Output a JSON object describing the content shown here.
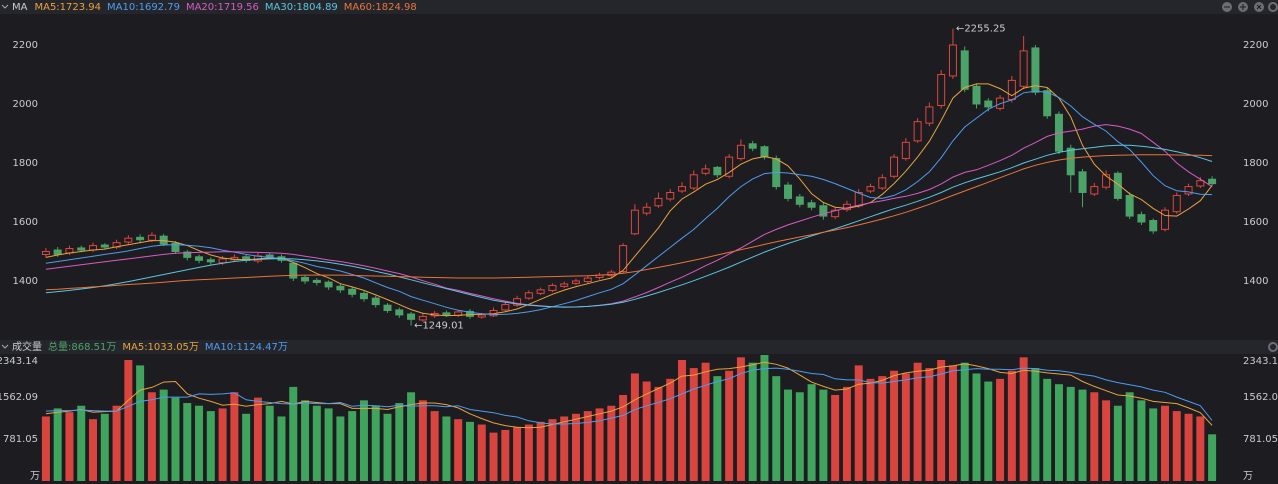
{
  "chart_data": {
    "type": "candlestick",
    "header": "MA",
    "open": [
      1490,
      1505,
      1495,
      1512,
      1505,
      1522,
      1515,
      1532,
      1548,
      1538,
      1552,
      1528,
      1498,
      1482,
      1472,
      1462,
      1472,
      1482,
      1468,
      1488,
      1482,
      1460,
      1412,
      1402,
      1396,
      1382,
      1372,
      1358,
      1342,
      1318,
      1302,
      1288,
      1268,
      1282,
      1292,
      1283,
      1297,
      1278,
      1282,
      1302,
      1318,
      1342,
      1358,
      1368,
      1382,
      1392,
      1398,
      1412,
      1418,
      1432,
      1560,
      1630,
      1655,
      1678,
      1705,
      1715,
      1765,
      1785,
      1755,
      1815,
      1865,
      1855,
      1815,
      1725,
      1685,
      1665,
      1655,
      1618,
      1642,
      1655,
      1705,
      1715,
      1755,
      1815,
      1875,
      1935,
      1995,
      2095,
      2180,
      2060,
      2010,
      1985,
      2015,
      2060,
      2190,
      2045,
      1965,
      1850,
      1770,
      1695,
      1718,
      1765,
      1690,
      1625,
      1605,
      1575,
      1635,
      1695,
      1722,
      1745
    ],
    "high": [
      1512,
      1515,
      1520,
      1520,
      1530,
      1528,
      1540,
      1555,
      1558,
      1565,
      1560,
      1535,
      1505,
      1490,
      1480,
      1485,
      1490,
      1488,
      1495,
      1495,
      1490,
      1465,
      1420,
      1410,
      1402,
      1390,
      1380,
      1365,
      1350,
      1325,
      1310,
      1295,
      1290,
      1298,
      1300,
      1302,
      1305,
      1292,
      1310,
      1330,
      1350,
      1368,
      1378,
      1392,
      1398,
      1408,
      1418,
      1428,
      1438,
      1528,
      1660,
      1665,
      1700,
      1712,
      1735,
      1775,
      1795,
      1790,
      1830,
      1880,
      1875,
      1860,
      1825,
      1735,
      1695,
      1675,
      1665,
      1650,
      1672,
      1712,
      1730,
      1762,
      1830,
      1885,
      1952,
      2005,
      2115,
      2255.25,
      2195,
      2070,
      2020,
      2030,
      2095,
      2230,
      2200,
      2055,
      1975,
      1862,
      1780,
      1732,
      1775,
      1772,
      1700,
      1635,
      1612,
      1650,
      1700,
      1730,
      1752,
      1755
    ],
    "low": [
      1480,
      1482,
      1488,
      1498,
      1498,
      1508,
      1508,
      1525,
      1530,
      1532,
      1518,
      1492,
      1470,
      1460,
      1455,
      1455,
      1465,
      1462,
      1460,
      1475,
      1462,
      1400,
      1390,
      1385,
      1370,
      1360,
      1345,
      1330,
      1310,
      1292,
      1275,
      1249.01,
      1262,
      1275,
      1278,
      1278,
      1272,
      1272,
      1278,
      1298,
      1312,
      1336,
      1352,
      1362,
      1376,
      1386,
      1392,
      1405,
      1412,
      1425,
      1555,
      1622,
      1648,
      1670,
      1698,
      1708,
      1758,
      1750,
      1748,
      1808,
      1840,
      1812,
      1710,
      1670,
      1650,
      1640,
      1608,
      1610,
      1635,
      1648,
      1698,
      1708,
      1748,
      1808,
      1868,
      1925,
      1985,
      2085,
      2040,
      1985,
      1975,
      1978,
      2005,
      2050,
      2030,
      1950,
      1830,
      1700,
      1650,
      1688,
      1710,
      1672,
      1610,
      1590,
      1560,
      1568,
      1628,
      1688,
      1715,
      1722
    ],
    "close": [
      1500,
      1490,
      1510,
      1505,
      1520,
      1515,
      1530,
      1545,
      1540,
      1555,
      1525,
      1500,
      1480,
      1470,
      1465,
      1475,
      1480,
      1470,
      1485,
      1480,
      1470,
      1410,
      1400,
      1395,
      1380,
      1370,
      1355,
      1340,
      1320,
      1300,
      1285,
      1270,
      1280,
      1290,
      1285,
      1295,
      1280,
      1285,
      1300,
      1320,
      1340,
      1360,
      1370,
      1385,
      1390,
      1400,
      1410,
      1420,
      1430,
      1520,
      1640,
      1650,
      1680,
      1700,
      1720,
      1760,
      1780,
      1760,
      1820,
      1860,
      1850,
      1820,
      1720,
      1680,
      1660,
      1650,
      1620,
      1640,
      1660,
      1700,
      1720,
      1750,
      1820,
      1870,
      1940,
      1990,
      2100,
      2200,
      2050,
      2000,
      1990,
      2020,
      2080,
      2180,
      2040,
      1960,
      1840,
      1760,
      1700,
      1720,
      1760,
      1680,
      1620,
      1600,
      1570,
      1640,
      1690,
      1720,
      1740,
      1730
    ],
    "series": [
      {
        "name": "MA5:1723.94",
        "color": "#e8a33c",
        "values": [
          1480,
          1488,
          1495,
          1500,
          1505,
          1508,
          1516,
          1523,
          1530,
          1537,
          1537,
          1532,
          1520,
          1503,
          1488,
          1478,
          1474,
          1472,
          1475,
          1478,
          1477,
          1463,
          1445,
          1425,
          1411,
          1391,
          1380,
          1368,
          1353,
          1337,
          1320,
          1303,
          1291,
          1285,
          1282,
          1284,
          1286,
          1287,
          1289,
          1296,
          1305,
          1321,
          1338,
          1355,
          1369,
          1381,
          1391,
          1401,
          1410,
          1436,
          1484,
          1532,
          1580,
          1638,
          1678,
          1702,
          1728,
          1744,
          1768,
          1796,
          1814,
          1822,
          1814,
          1790,
          1746,
          1696,
          1666,
          1650,
          1646,
          1654,
          1666,
          1694,
          1730,
          1772,
          1820,
          1874,
          1944,
          2020,
          2056,
          2068,
          2068,
          2052,
          2028,
          2054,
          2062,
          2056,
          2020,
          1956,
          1860,
          1796,
          1756,
          1728,
          1696,
          1676,
          1646,
          1622,
          1620,
          1644,
          1672,
          1723.94
        ]
      },
      {
        "name": "MA10:1692.79",
        "color": "#4e9cf0",
        "values": [
          1460,
          1466,
          1472,
          1478,
          1484,
          1490,
          1496,
          1502,
          1510,
          1518,
          1522,
          1523,
          1521,
          1518,
          1513,
          1504,
          1498,
          1490,
          1484,
          1480,
          1476,
          1469,
          1460,
          1449,
          1442,
          1434,
          1422,
          1410,
          1394,
          1378,
          1365,
          1347,
          1335,
          1323,
          1311,
          1301,
          1294,
          1289,
          1286,
          1287,
          1290,
          1296,
          1303,
          1313,
          1323,
          1334,
          1347,
          1360,
          1372,
          1391,
          1421,
          1452,
          1483,
          1514,
          1545,
          1575,
          1612,
          1646,
          1686,
          1720,
          1746,
          1764,
          1768,
          1766,
          1760,
          1755,
          1744,
          1730,
          1714,
          1698,
          1683,
          1680,
          1690,
          1709,
          1737,
          1770,
          1818,
          1875,
          1922,
          1952,
          1982,
          2001,
          2014,
          2038,
          2043,
          2040,
          2022,
          1993,
          1957,
          1931,
          1908,
          1872,
          1846,
          1803,
          1757,
          1723,
          1706,
          1702,
          1694,
          1692.79
        ]
      },
      {
        "name": "MA20:1719.56",
        "color": "#d85bc4",
        "values": [
          1440,
          1445,
          1450,
          1455,
          1460,
          1465,
          1470,
          1475,
          1480,
          1485,
          1490,
          1494,
          1496,
          1497,
          1498,
          1499,
          1499,
          1498,
          1497,
          1496,
          1494,
          1490,
          1484,
          1478,
          1471,
          1466,
          1459,
          1452,
          1443,
          1434,
          1425,
          1414,
          1401,
          1389,
          1376,
          1368,
          1358,
          1349,
          1340,
          1332,
          1324,
          1319,
          1316,
          1313,
          1311,
          1312,
          1314,
          1318,
          1323,
          1332,
          1346,
          1361,
          1378,
          1396,
          1413,
          1432,
          1452,
          1470,
          1491,
          1512,
          1535,
          1558,
          1575,
          1590,
          1603,
          1616,
          1628,
          1638,
          1648,
          1657,
          1665,
          1672,
          1680,
          1687,
          1697,
          1710,
          1729,
          1752,
          1768,
          1777,
          1792,
          1808,
          1826,
          1850,
          1869,
          1890,
          1902,
          1908,
          1915,
          1925,
          1930,
          1925,
          1915,
          1900,
          1870,
          1840,
          1800,
          1770,
          1745,
          1719.56
        ]
      },
      {
        "name": "MA30:1804.89",
        "color": "#5bc6e0",
        "values": [
          1360,
          1364,
          1368,
          1373,
          1378,
          1384,
          1391,
          1398,
          1406,
          1414,
          1422,
          1430,
          1438,
          1446,
          1454,
          1460,
          1466,
          1470,
          1473,
          1475,
          1476,
          1475,
          1472,
          1468,
          1463,
          1457,
          1450,
          1442,
          1433,
          1424,
          1414,
          1404,
          1394,
          1384,
          1374,
          1364,
          1354,
          1344,
          1335,
          1328,
          1322,
          1318,
          1315,
          1313,
          1312,
          1312,
          1314,
          1317,
          1321,
          1328,
          1338,
          1349,
          1361,
          1374,
          1387,
          1401,
          1416,
          1431,
          1447,
          1464,
          1481,
          1498,
          1513,
          1527,
          1540,
          1553,
          1565,
          1577,
          1590,
          1604,
          1618,
          1632,
          1645,
          1657,
          1670,
          1684,
          1700,
          1718,
          1733,
          1746,
          1758,
          1770,
          1784,
          1800,
          1813,
          1826,
          1836,
          1843,
          1848,
          1853,
          1858,
          1860,
          1860,
          1857,
          1852,
          1846,
          1838,
          1829,
          1818,
          1804.89
        ]
      },
      {
        "name": "MA60:1824.98",
        "color": "#e8743c",
        "values": [
          1370,
          1372,
          1375,
          1377,
          1380,
          1382,
          1385,
          1388,
          1390,
          1393,
          1396,
          1399,
          1402,
          1404,
          1406,
          1408,
          1410,
          1412,
          1414,
          1416,
          1418,
          1419,
          1420,
          1420,
          1420,
          1420,
          1419,
          1418,
          1417,
          1416,
          1415,
          1414,
          1413,
          1412,
          1411,
          1410,
          1410,
          1410,
          1410,
          1411,
          1412,
          1413,
          1414,
          1415,
          1416,
          1417,
          1418,
          1420,
          1422,
          1426,
          1432,
          1439,
          1446,
          1454,
          1462,
          1470,
          1479,
          1488,
          1497,
          1506,
          1515,
          1524,
          1533,
          1541,
          1549,
          1557,
          1565,
          1573,
          1581,
          1590,
          1600,
          1610,
          1621,
          1633,
          1646,
          1660,
          1675,
          1690,
          1705,
          1720,
          1735,
          1750,
          1765,
          1780,
          1792,
          1802,
          1810,
          1816,
          1820,
          1823,
          1825,
          1826,
          1827,
          1828,
          1828,
          1828,
          1827,
          1826,
          1826,
          1824.98
        ]
      }
    ],
    "ylim": [
      1200,
      2305
    ],
    "yticks": [
      1400,
      1600,
      1800,
      2000,
      2200
    ],
    "up_color": "#e0463f",
    "down_color": "#4ca368",
    "high_label": "←2255.25",
    "low_label": "←1249.01",
    "volume": {
      "type": "bar",
      "title": "成交量",
      "total_label": "总量:868.51万",
      "unit": "万",
      "values": [
        1200,
        1350,
        1280,
        1400,
        1150,
        1250,
        1400,
        2250,
        2150,
        1650,
        1700,
        1550,
        1450,
        1400,
        1300,
        1350,
        1650,
        1250,
        1550,
        1400,
        1200,
        1750,
        1500,
        1400,
        1350,
        1200,
        1300,
        1500,
        1400,
        1250,
        1450,
        1650,
        1500,
        1300,
        1200,
        1150,
        1100,
        1050,
        900,
        950,
        1000,
        1050,
        1100,
        1150,
        1200,
        1250,
        1300,
        1350,
        1400,
        1600,
        2000,
        1850,
        1750,
        1900,
        2250,
        2100,
        2200,
        1950,
        2050,
        2300,
        2200,
        2343.14,
        1950,
        1700,
        1650,
        1800,
        1700,
        1600,
        1750,
        2150,
        1900,
        1950,
        2050,
        2000,
        2200,
        2100,
        2250,
        2150,
        2200,
        2000,
        1850,
        1900,
        2050,
        2300,
        2100,
        1900,
        1800,
        1750,
        1700,
        1650,
        1500,
        1400,
        1650,
        1500,
        1350,
        1400,
        1300,
        1250,
        1200,
        868.51
      ],
      "series": [
        {
          "name": "MA5:1033.05万",
          "color": "#e8a33c",
          "values": [
            1250,
            1280,
            1300,
            1330,
            1280,
            1290,
            1300,
            1500,
            1690,
            1740,
            1840,
            1850,
            1620,
            1540,
            1480,
            1410,
            1430,
            1390,
            1420,
            1440,
            1480,
            1430,
            1480,
            1460,
            1440,
            1440,
            1350,
            1350,
            1350,
            1330,
            1380,
            1420,
            1450,
            1450,
            1420,
            1360,
            1250,
            1160,
            1080,
            1030,
            1000,
            990,
            1000,
            1050,
            1100,
            1150,
            1200,
            1250,
            1300,
            1380,
            1510,
            1620,
            1720,
            1820,
            1950,
            1970,
            2030,
            2080,
            2090,
            2120,
            2160,
            2210,
            2170,
            2100,
            1970,
            1840,
            1760,
            1690,
            1710,
            1800,
            1820,
            1870,
            1960,
            2010,
            2040,
            2060,
            2120,
            2140,
            2180,
            2140,
            2090,
            2020,
            2000,
            2060,
            2040,
            2010,
            1990,
            1970,
            1850,
            1760,
            1680,
            1600,
            1580,
            1540,
            1480,
            1460,
            1440,
            1360,
            1270,
            1033.05
          ]
        },
        {
          "name": "MA10:1124.47万",
          "color": "#4e9cf0",
          "values": [
            1300,
            1310,
            1310,
            1320,
            1310,
            1300,
            1300,
            1390,
            1480,
            1510,
            1560,
            1560,
            1560,
            1620,
            1610,
            1620,
            1640,
            1510,
            1480,
            1460,
            1440,
            1430,
            1450,
            1440,
            1440,
            1460,
            1390,
            1410,
            1400,
            1380,
            1410,
            1390,
            1400,
            1400,
            1380,
            1400,
            1330,
            1300,
            1270,
            1220,
            1190,
            1120,
            1080,
            1060,
            1060,
            1070,
            1090,
            1120,
            1170,
            1220,
            1330,
            1400,
            1460,
            1530,
            1620,
            1710,
            1780,
            1850,
            1900,
            2000,
            2060,
            2090,
            2100,
            2080,
            2040,
            2000,
            1980,
            1900,
            1880,
            1880,
            1830,
            1820,
            1850,
            1880,
            1920,
            1940,
            1990,
            2050,
            2070,
            2090,
            2080,
            2080,
            2070,
            2100,
            2090,
            2060,
            2050,
            2020,
            1980,
            1950,
            1880,
            1830,
            1790,
            1750,
            1690,
            1650,
            1560,
            1480,
            1400,
            1124.47
          ]
        }
      ],
      "ylim": [
        0,
        2343.14
      ],
      "yticks": [
        781.05,
        1562.09,
        2343.14
      ]
    }
  }
}
